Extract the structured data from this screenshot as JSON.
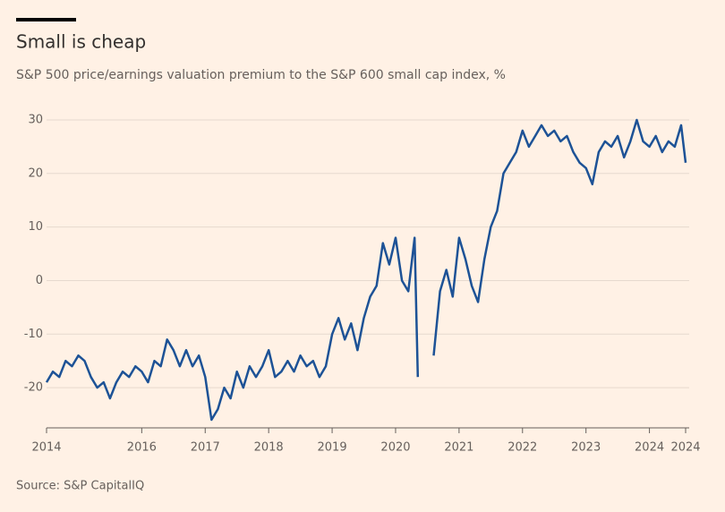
{
  "chart_data": {
    "type": "line",
    "title": "Small is cheap",
    "subtitle": "S&P 500 price/earnings valuation premium to the S&P 600 small cap index, %",
    "source": "Source: S&P CapitalIQ",
    "color": "#1d5296",
    "grid": true,
    "xlim": [
      2014.5,
      2024.57
    ],
    "ylim": [
      -27.5,
      32
    ],
    "yticks": [
      -20,
      -10,
      0,
      10,
      20,
      30
    ],
    "xticks": [
      {
        "value": 2014.5,
        "label": "2014"
      },
      2016,
      2017,
      2018,
      2019,
      2020,
      2021,
      2022,
      2023,
      2024,
      {
        "value": 2024.57,
        "label": "2024"
      }
    ],
    "x": [
      2014.5,
      2014.6,
      2014.7,
      2014.8,
      2014.9,
      2015.0,
      2015.1,
      2015.2,
      2015.3,
      2015.4,
      2015.5,
      2015.6,
      2015.7,
      2015.8,
      2015.9,
      2016.0,
      2016.1,
      2016.2,
      2016.3,
      2016.4,
      2016.5,
      2016.6,
      2016.7,
      2016.8,
      2016.9,
      2017.0,
      2017.1,
      2017.2,
      2017.3,
      2017.4,
      2017.5,
      2017.6,
      2017.7,
      2017.8,
      2017.9,
      2018.0,
      2018.1,
      2018.2,
      2018.3,
      2018.4,
      2018.5,
      2018.6,
      2018.7,
      2018.8,
      2018.9,
      2019.0,
      2019.1,
      2019.2,
      2019.3,
      2019.4,
      2019.5,
      2019.6,
      2019.7,
      2019.8,
      2019.9,
      2020.0,
      2020.1,
      2020.2,
      2020.3,
      2020.35,
      2020.45,
      2020.6,
      2020.7,
      2020.8,
      2020.9,
      2021.0,
      2021.1,
      2021.2,
      2021.3,
      2021.4,
      2021.5,
      2021.6,
      2021.7,
      2021.8,
      2021.9,
      2022.0,
      2022.1,
      2022.2,
      2022.3,
      2022.4,
      2022.5,
      2022.6,
      2022.7,
      2022.8,
      2022.9,
      2023.0,
      2023.1,
      2023.2,
      2023.3,
      2023.4,
      2023.5,
      2023.6,
      2023.7,
      2023.8,
      2023.9,
      2024.0,
      2024.1,
      2024.2,
      2024.3,
      2024.4,
      2024.5,
      2024.57
    ],
    "values": [
      -19,
      -17,
      -18,
      -15,
      -16,
      -14,
      -15,
      -18,
      -20,
      -19,
      -22,
      -19,
      -17,
      -18,
      -16,
      -17,
      -19,
      -15,
      -16,
      -11,
      -13,
      -16,
      -13,
      -16,
      -14,
      -18,
      -26,
      -24,
      -20,
      -22,
      -17,
      -20,
      -16,
      -18,
      -16,
      -13,
      -18,
      -17,
      -15,
      -17,
      -14,
      -16,
      -15,
      -18,
      -16,
      -10,
      -7,
      -11,
      -8,
      -13,
      -7,
      -3,
      -1,
      7,
      3,
      8,
      0,
      -2,
      8,
      -18,
      null,
      -14,
      -2,
      2,
      -3,
      8,
      4,
      -1,
      -4,
      4,
      10,
      13,
      20,
      22,
      24,
      28,
      25,
      27,
      29,
      27,
      28,
      26,
      27,
      24,
      22,
      21,
      18,
      24,
      26,
      25,
      27,
      23,
      26,
      30,
      26,
      25,
      27,
      24,
      26,
      25,
      29,
      22
    ]
  }
}
